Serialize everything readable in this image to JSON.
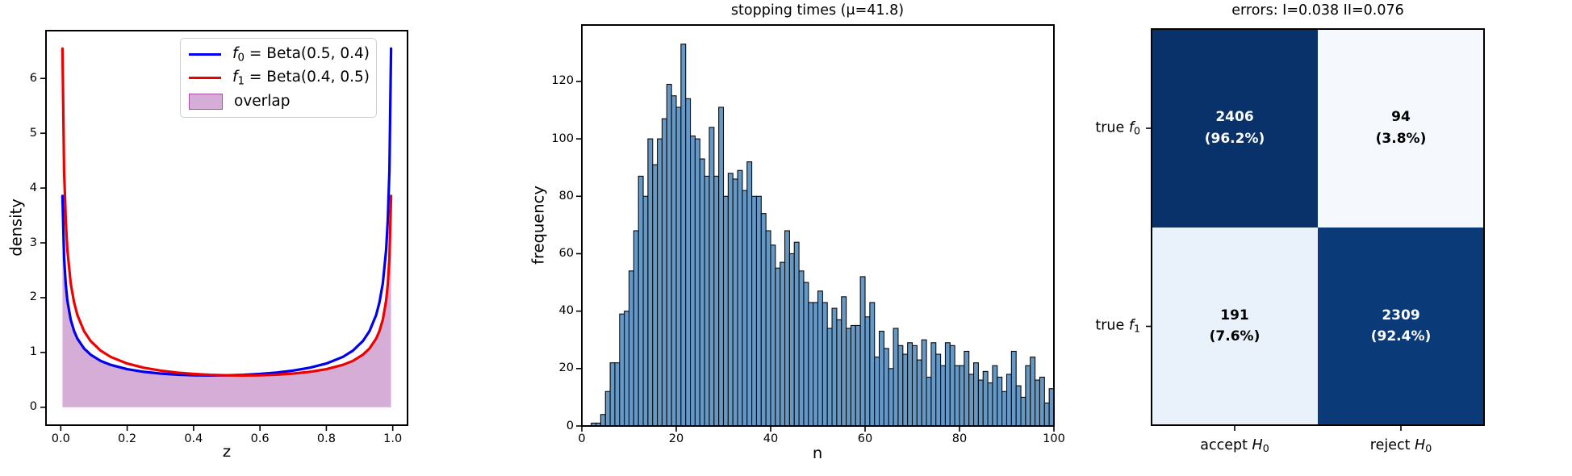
{
  "figure": {
    "background": "#ffffff",
    "spine_color": "#000000"
  },
  "chart_data": [
    {
      "id": "beta-densities",
      "type": "line",
      "xlabel": "z",
      "ylabel": "density",
      "xticks": [
        0.0,
        0.2,
        0.4,
        0.6,
        0.8,
        1.0
      ],
      "xtick_labels": [
        "0.0",
        "0.2",
        "0.4",
        "0.6",
        "0.8",
        "1.0"
      ],
      "yticks": [
        0,
        1,
        2,
        3,
        4,
        5,
        6
      ],
      "ytick_labels": [
        "0",
        "1",
        "2",
        "3",
        "4",
        "5",
        "6"
      ],
      "xlim": [
        -0.0445,
        1.0445
      ],
      "ylim": [
        -0.327,
        6.872
      ],
      "legend_position": "upper-left-center",
      "x": [
        0.005,
        0.01,
        0.015,
        0.02,
        0.03,
        0.04,
        0.05,
        0.07,
        0.09,
        0.12,
        0.15,
        0.2,
        0.25,
        0.3,
        0.35,
        0.4,
        0.45,
        0.5,
        0.55,
        0.6,
        0.65,
        0.7,
        0.75,
        0.8,
        0.85,
        0.88,
        0.91,
        0.93,
        0.95,
        0.96,
        0.97,
        0.98,
        0.985,
        0.99,
        0.995
      ],
      "series": [
        {
          "label_f": "f",
          "label_sub": "0",
          "label_rest": " = Beta(0.5, 0.4)",
          "color": "#0000ee",
          "values": [
            3.855,
            2.734,
            2.239,
            1.945,
            1.598,
            1.393,
            1.253,
            1.073,
            0.959,
            0.847,
            0.774,
            0.695,
            0.646,
            0.615,
            0.595,
            0.584,
            0.58,
            0.583,
            0.592,
            0.608,
            0.633,
            0.67,
            0.721,
            0.798,
            0.92,
            1.034,
            1.208,
            1.39,
            1.683,
            1.914,
            2.262,
            2.871,
            3.403,
            4.329,
            6.545
          ]
        },
        {
          "label_f": "f",
          "label_sub": "1",
          "label_rest": " = Beta(0.4, 0.5)",
          "color": "#ee0000",
          "values": [
            6.545,
            4.329,
            3.403,
            2.871,
            2.262,
            1.914,
            1.683,
            1.39,
            1.208,
            1.034,
            0.92,
            0.798,
            0.721,
            0.67,
            0.633,
            0.608,
            0.592,
            0.583,
            0.58,
            0.584,
            0.595,
            0.615,
            0.646,
            0.695,
            0.774,
            0.847,
            0.959,
            1.073,
            1.253,
            1.393,
            1.598,
            1.945,
            2.239,
            2.734,
            3.855
          ]
        }
      ],
      "overlap": {
        "label": "overlap",
        "color": "#800080",
        "fill_opacity": 0.32,
        "edge_opacity": 0.55
      }
    },
    {
      "id": "stopping-times",
      "type": "bar",
      "title": "stopping times (μ=41.8)",
      "xlabel": "n",
      "ylabel": "frequency",
      "xlim": [
        0,
        100
      ],
      "ylim": [
        0,
        139.65
      ],
      "xticks": [
        0,
        20,
        40,
        60,
        80,
        100
      ],
      "yticks": [
        0,
        20,
        40,
        60,
        80,
        100,
        120
      ],
      "bin_start": 0,
      "bin_width": 1,
      "bar_color": "#6498c6",
      "bar_edge": "#0a0a0a",
      "values": [
        0,
        0,
        1,
        1,
        4,
        12,
        22,
        22,
        39,
        40,
        54,
        68,
        87,
        80,
        100,
        91,
        100,
        107,
        119,
        115,
        111,
        133,
        114,
        101,
        100,
        93,
        87,
        104,
        87,
        111,
        80,
        88,
        86,
        89,
        82,
        92,
        80,
        80,
        74,
        68,
        63,
        55,
        57,
        68,
        60,
        64,
        54,
        50,
        43,
        43,
        47,
        43,
        34,
        41,
        37,
        45,
        34,
        35,
        35,
        52,
        38,
        43,
        24,
        33,
        27,
        20,
        34,
        28,
        25,
        29,
        28,
        23,
        30,
        17,
        29,
        25,
        21,
        29,
        28,
        21,
        21,
        26,
        18,
        22,
        16,
        19,
        15,
        21,
        17,
        12,
        18,
        26,
        14,
        10,
        21,
        24,
        16,
        17,
        8,
        13
      ]
    },
    {
      "id": "confusion-matrix",
      "type": "heatmap",
      "title": "errors: I=0.038 II=0.076",
      "rows": [
        {
          "label_prefix": "true ",
          "label_f": "f",
          "label_sub": "0"
        },
        {
          "label_prefix": "true ",
          "label_f": "f",
          "label_sub": "1"
        }
      ],
      "cols": [
        {
          "label_prefix": "accept ",
          "label_f": "H",
          "label_sub": "0"
        },
        {
          "label_prefix": "reject ",
          "label_f": "H",
          "label_sub": "0"
        }
      ],
      "cells": [
        [
          {
            "count": "2406",
            "pct": "(96.2%)",
            "bg": "#083269",
            "fg": "#ffffff"
          },
          {
            "count": "94",
            "pct": "(3.8%)",
            "bg": "#f5f9fe",
            "fg": "#000000"
          }
        ],
        [
          {
            "count": "191",
            "pct": "(7.6%)",
            "bg": "#e9f1fa",
            "fg": "#000000"
          },
          {
            "count": "2309",
            "pct": "(92.4%)",
            "bg": "#0a3a77",
            "fg": "#ffffff"
          }
        ]
      ]
    }
  ]
}
